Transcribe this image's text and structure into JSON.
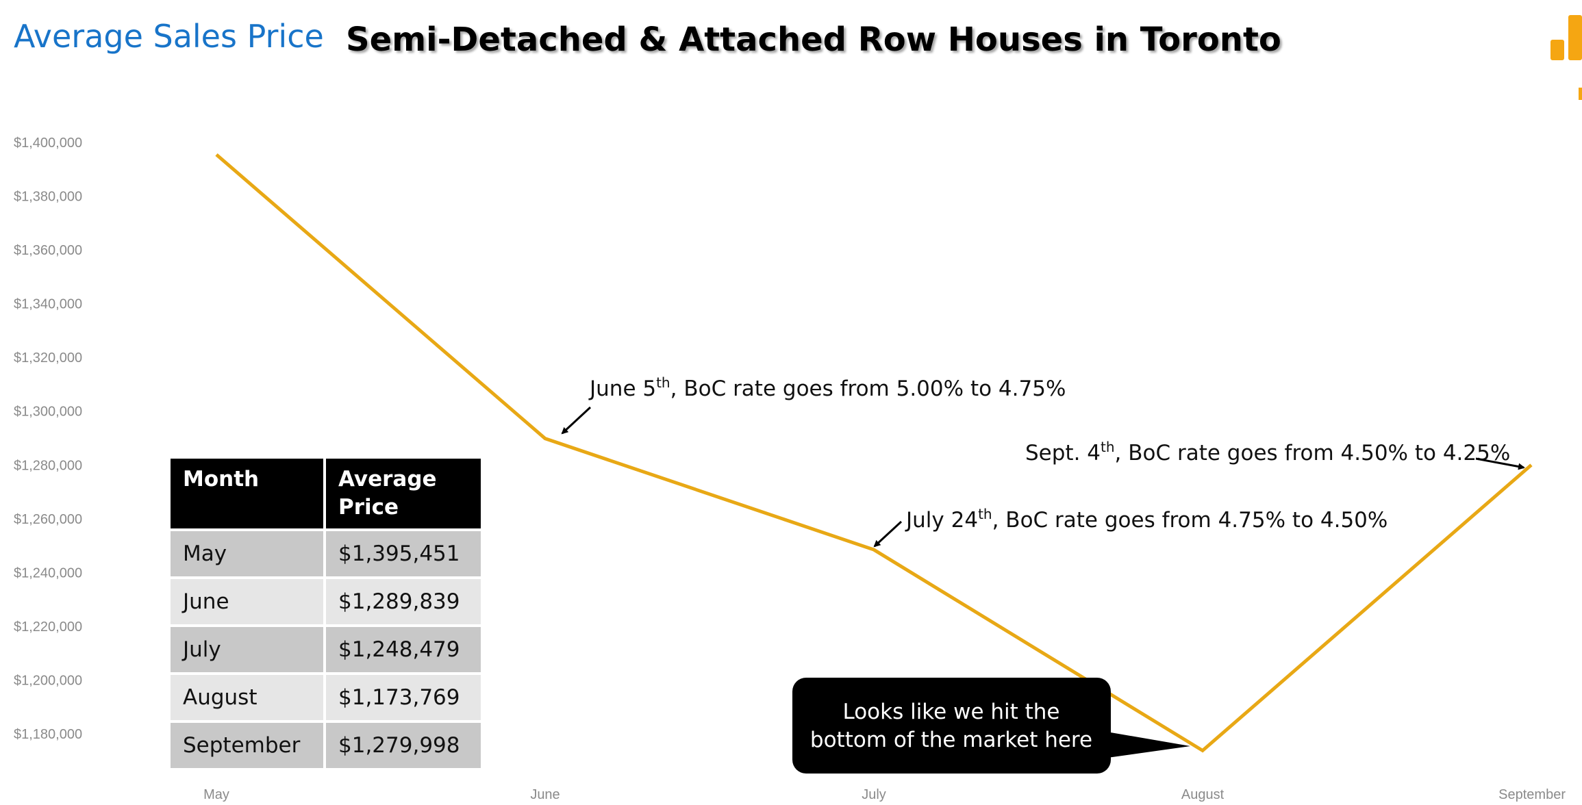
{
  "header": {
    "left_title": "Average Sales Price",
    "main_title": "Semi-Detached & Attached Row Houses in Toronto"
  },
  "colors": {
    "line": "#e8a815",
    "accent_blue": "#1874c9",
    "logo": "#f5a612"
  },
  "chart_data": {
    "type": "line",
    "categories": [
      "May",
      "June",
      "July",
      "August",
      "September"
    ],
    "series": [
      {
        "values": [
          1395451,
          1289839,
          1248479,
          1173769,
          1279998
        ]
      }
    ],
    "ylim": [
      1170000,
      1400000
    ],
    "yticks": [
      1180000,
      1200000,
      1220000,
      1240000,
      1260000,
      1280000,
      1300000,
      1320000,
      1340000,
      1360000,
      1380000,
      1400000
    ],
    "ytick_labels": [
      "$1,180,000",
      "$1,200,000",
      "$1,220,000",
      "$1,240,000",
      "$1,260,000",
      "$1,280,000",
      "$1,300,000",
      "$1,320,000",
      "$1,340,000",
      "$1,360,000",
      "$1,380,000",
      "$1,400,000"
    ],
    "grid": false,
    "annotations": [
      {
        "target": "June",
        "text": "June 5",
        "sup": "th",
        "rest": ", BoC rate goes from 5.00% to 4.75%"
      },
      {
        "target": "July",
        "text": "July 24",
        "sup": "th",
        "rest": ", BoC rate goes from 4.75% to 4.50%"
      },
      {
        "target": "September",
        "text": "Sept. 4",
        "sup": "th",
        "rest": ", BoC rate goes from 4.50% to 4.25%"
      }
    ],
    "callout": {
      "target": "August",
      "lines": [
        "Looks like we hit the",
        "bottom of the market here"
      ]
    }
  },
  "table": {
    "headers": [
      "Month",
      "Average Price"
    ],
    "rows": [
      [
        "May",
        "$1,395,451"
      ],
      [
        "June",
        "$1,289,839"
      ],
      [
        "July",
        "$1,248,479"
      ],
      [
        "August",
        "$1,173,769"
      ],
      [
        "September",
        "$1,279,998"
      ]
    ]
  }
}
